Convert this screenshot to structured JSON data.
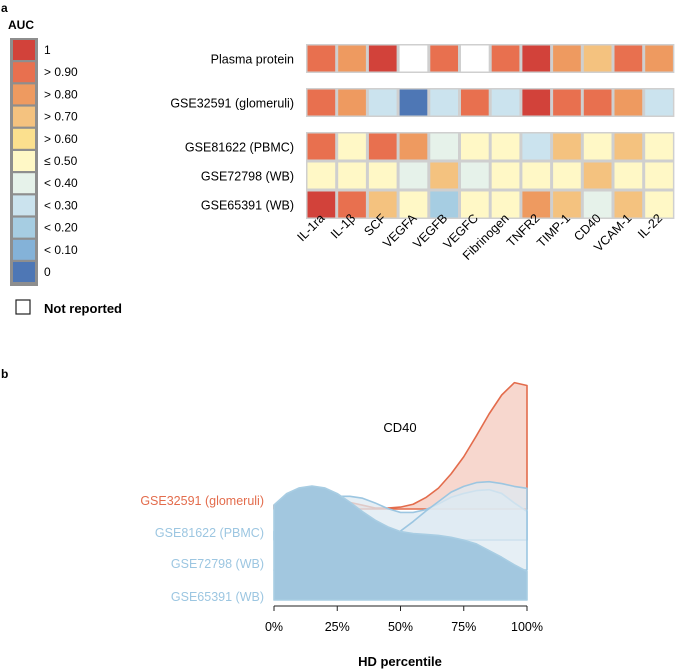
{
  "panel_a": {
    "label": "a",
    "legend": {
      "title": "AUC",
      "labels": [
        "1",
        "> 0.90",
        "> 0.80",
        "> 0.70",
        "> 0.60",
        "≤ 0.50",
        "< 0.40",
        "< 0.30",
        "< 0.20",
        "< 0.10",
        "0"
      ],
      "colors": [
        "#d2423a",
        "#e8704f",
        "#ee9a60",
        "#f4c27f",
        "#fbe08e",
        "#fff8c6",
        "#e6f2ea",
        "#cbe3ee",
        "#a6cde2",
        "#84b2d8",
        "#4e77b5"
      ],
      "not_reported_label": "Not reported"
    }
  },
  "panel_b": {
    "label": "b"
  },
  "chart_data": [
    {
      "type": "heatmap",
      "title": "",
      "columns": [
        "IL-1ra",
        "IL-1β",
        "SCF",
        "VEGFA",
        "VEGFB",
        "VEGFC",
        "Fibrinogen",
        "TNFR2",
        "TIMP-1",
        "CD40",
        "VCAM-1",
        "IL-22"
      ],
      "row_groups": [
        {
          "rows": [
            {
              "name": "Plasma protein",
              "values": [
                0.85,
                0.75,
                0.95,
                null,
                0.85,
                null,
                0.85,
                0.95,
                0.75,
                0.65,
                0.85,
                0.75
              ]
            }
          ]
        },
        {
          "rows": [
            {
              "name": "GSE32591 (glomeruli)",
              "values": [
                0.85,
                0.75,
                0.35,
                0.05,
                0.35,
                0.85,
                0.35,
                0.95,
                0.85,
                0.85,
                0.75,
                0.35
              ]
            }
          ]
        },
        {
          "rows": [
            {
              "name": "GSE81622 (PBMC)",
              "values": [
                0.85,
                0.5,
                0.85,
                0.75,
                0.45,
                0.5,
                0.5,
                0.35,
                0.65,
                0.5,
                0.65,
                0.5
              ]
            },
            {
              "name": "GSE72798 (WB)",
              "values": [
                0.5,
                0.5,
                0.5,
                0.45,
                0.65,
                0.45,
                0.5,
                0.5,
                0.5,
                0.65,
                0.5,
                0.5
              ]
            },
            {
              "name": "GSE65391 (WB)",
              "values": [
                0.95,
                0.85,
                0.65,
                0.5,
                0.25,
                0.5,
                0.5,
                0.75,
                0.65,
                0.45,
                0.65,
                0.5
              ]
            }
          ]
        }
      ],
      "legend_title": "AUC",
      "null_meaning": "Not reported"
    },
    {
      "type": "area",
      "subtype": "ridgeline-density",
      "title": "CD40",
      "xlabel": "HD percentile",
      "ylabel": "",
      "xlim": [
        0,
        100
      ],
      "x_ticks": [
        "0%",
        "25%",
        "50%",
        "75%",
        "100%"
      ],
      "x": [
        0,
        5,
        10,
        15,
        20,
        25,
        30,
        35,
        40,
        45,
        50,
        55,
        60,
        65,
        70,
        75,
        80,
        85,
        90,
        95,
        100
      ],
      "series": [
        {
          "name": "GSE32591 (glomeruli)",
          "color": "#e36c4c",
          "fill": "#f4c9bd",
          "values": [
            0.04,
            0.07,
            0.1,
            0.12,
            0.12,
            0.1,
            0.07,
            0.04,
            0.01,
            0.01,
            0.02,
            0.05,
            0.12,
            0.22,
            0.37,
            0.55,
            0.77,
            1.0,
            1.2,
            1.33,
            1.3
          ]
        },
        {
          "name": "GSE81622 (PBMC)",
          "color": "#9cc6e1",
          "fill": "#dde9f2",
          "values": [
            0.09,
            0.16,
            0.26,
            0.35,
            0.42,
            0.46,
            0.46,
            0.44,
            0.39,
            0.33,
            0.29,
            0.29,
            0.32,
            0.38,
            0.45,
            0.49,
            0.52,
            0.53,
            0.49,
            0.39,
            0.3
          ]
        },
        {
          "name": "GSE72798 (WB)",
          "color": "#9cc6e1",
          "fill": "#dde9f2",
          "values": [
            0.0,
            0.01,
            0.03,
            0.06,
            0.09,
            0.12,
            0.17,
            0.21,
            0.26,
            0.32,
            0.41,
            0.51,
            0.62,
            0.72,
            0.82,
            0.88,
            0.92,
            0.93,
            0.91,
            0.88,
            0.86
          ]
        },
        {
          "name": "GSE65391 (WB)",
          "color": "#a8cde3",
          "fill": "#a2c7df",
          "values": [
            1.0,
            1.12,
            1.18,
            1.2,
            1.18,
            1.12,
            1.03,
            0.93,
            0.84,
            0.77,
            0.72,
            0.7,
            0.69,
            0.68,
            0.66,
            0.63,
            0.59,
            0.52,
            0.45,
            0.37,
            0.3
          ]
        }
      ]
    }
  ]
}
